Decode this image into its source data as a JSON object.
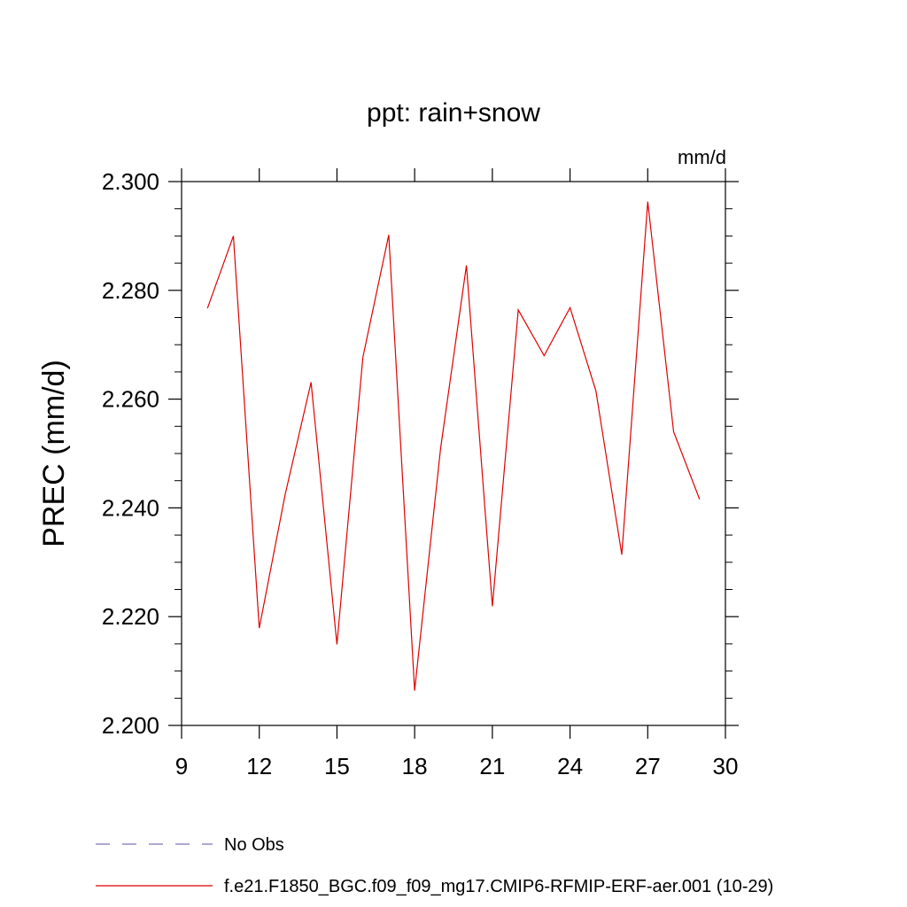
{
  "chart_data": {
    "type": "line",
    "title": "ppt: rain+snow",
    "units_label": "mm/d",
    "ylabel": "PREC  (mm/d)",
    "xlabel": "",
    "xlim": [
      9,
      30
    ],
    "ylim": [
      2.2,
      2.3
    ],
    "x_ticks": [
      9,
      12,
      15,
      18,
      21,
      24,
      27,
      30
    ],
    "y_ticks": [
      2.2,
      2.22,
      2.24,
      2.26,
      2.28,
      2.3
    ],
    "y_tick_labels": [
      "2.200",
      "2.220",
      "2.240",
      "2.260",
      "2.280",
      "2.300"
    ],
    "grid": false,
    "legend_position": "bottom",
    "series": [
      {
        "name": "f.e21.F1850_BGC.f09_f09_mg17.CMIP6-RFMIP-ERF-aer.001 (10-29)",
        "color": "#e00000",
        "style": "solid",
        "x": [
          10,
          11,
          12,
          13,
          14,
          15,
          16,
          17,
          18,
          19,
          20,
          21,
          22,
          23,
          24,
          25,
          26,
          27,
          28,
          29
        ],
        "values": [
          2.2767,
          2.29,
          2.2179,
          2.2425,
          2.2631,
          2.2149,
          2.2677,
          2.2902,
          2.2064,
          2.2509,
          2.2846,
          2.2219,
          2.2764,
          2.268,
          2.2768,
          2.2615,
          2.2314,
          2.2963,
          2.254,
          2.2416
        ]
      }
    ],
    "legend": [
      {
        "label": "No Obs",
        "color": "#7b74b8",
        "style": "dashed"
      },
      {
        "label": "f.e21.F1850_BGC.f09_f09_mg17.CMIP6-RFMIP-ERF-aer.001 (10-29)",
        "color": "#e00000",
        "style": "solid"
      }
    ]
  }
}
